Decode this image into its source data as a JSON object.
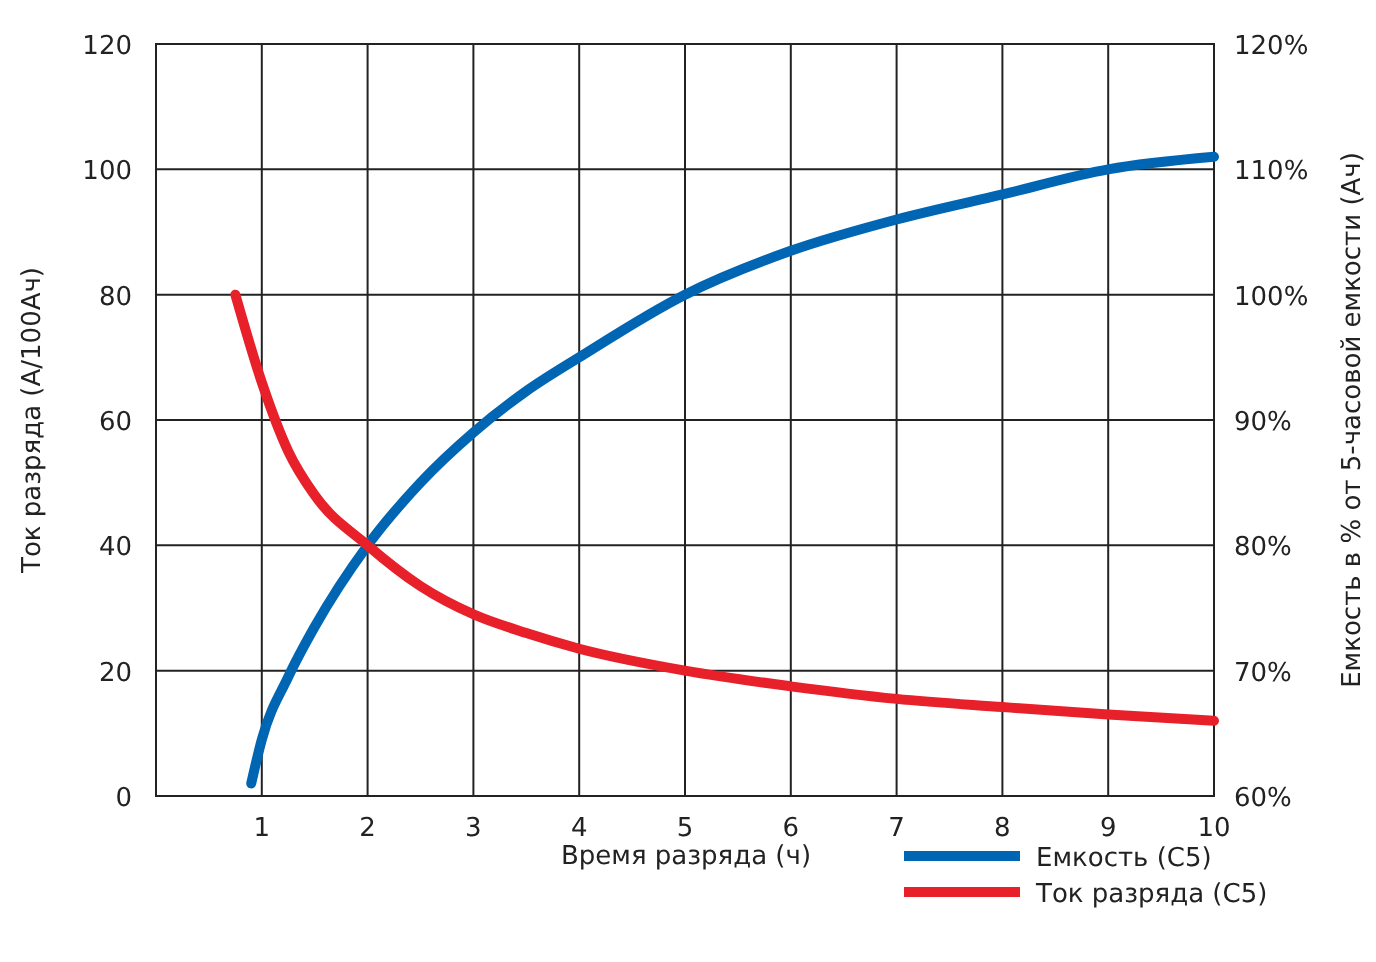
{
  "chart_data": {
    "type": "line",
    "xlabel": "Время разряда (ч)",
    "ylabel": "Ток разряда (А/100Ач)",
    "y2label": "Емкость в % от 5-часовой емкости (Ач)",
    "xlim": [
      0,
      10
    ],
    "xticks": [
      1,
      2,
      3,
      4,
      5,
      6,
      7,
      8,
      9,
      10
    ],
    "ylim": [
      0,
      120
    ],
    "yticks": [
      0,
      20,
      40,
      60,
      80,
      100,
      120
    ],
    "y2lim": [
      60,
      120
    ],
    "y2ticks": [
      {
        "value": 60,
        "label": "60%"
      },
      {
        "value": 70,
        "label": "70%"
      },
      {
        "value": 80,
        "label": "80%"
      },
      {
        "value": 90,
        "label": "90%"
      },
      {
        "value": 100,
        "label": "100%"
      },
      {
        "value": 110,
        "label": "110%"
      },
      {
        "value": 120,
        "label": "120%"
      }
    ],
    "grid": true,
    "legend": "bottom right",
    "line_style": "solid",
    "series": [
      {
        "name": "Емкость (С5)",
        "color": "#0066b3",
        "axis": "y2",
        "x": [
          0.9,
          1,
          1.25,
          1.5,
          2,
          2.5,
          3,
          3.5,
          4,
          5,
          6,
          7,
          8,
          9,
          10
        ],
        "values": [
          61,
          64.5,
          69.5,
          73.5,
          80,
          85,
          89,
          92.3,
          95,
          100,
          103.5,
          106,
          108,
          110,
          111
        ]
      },
      {
        "name": "Ток разряда (С5)",
        "color": "#e8202a",
        "x": [
          0.75,
          1,
          1.25,
          1.5,
          2,
          2.5,
          3,
          3.5,
          4,
          5,
          6,
          7,
          8,
          9,
          10
        ],
        "values": [
          80,
          66,
          55,
          48,
          40,
          33.5,
          29,
          26,
          23.5,
          20,
          17.5,
          15.5,
          14.2,
          13,
          12
        ]
      }
    ]
  }
}
